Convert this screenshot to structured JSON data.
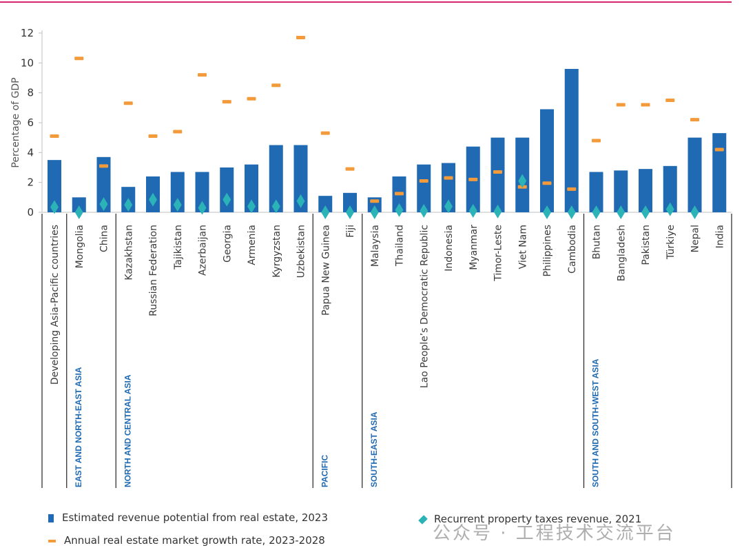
{
  "colors": {
    "bar": "#1f6ab3",
    "growth": "#f39a3a",
    "tax": "#2bb3b8",
    "top_rule": "#d7246b",
    "divider": "#222222"
  },
  "chart_data": {
    "type": "bar",
    "ylabel": "Percentage of GDP",
    "ylim": [
      0,
      12
    ],
    "yticks": [
      "0",
      "2",
      "4",
      "6",
      "8",
      "10",
      "12"
    ],
    "categories": [
      "Developing Asia-Pacific countries",
      "Mongolia",
      "China",
      "Kazakhstan",
      "Russian Federation",
      "Tajikistan",
      "Azerbaijan",
      "Georgia",
      "Armenia",
      "Kyrgyzstan",
      "Uzbekistan",
      "Papua New Guinea",
      "Fiji",
      "Malaysia",
      "Thailand",
      "Lao People’s Democratic Republic",
      "Indonesia",
      "Myanmar",
      "Timor-Leste",
      "Viet Nam",
      "Philippines",
      "Cambodia",
      "Bhutan",
      "Bangladesh",
      "Pakistan",
      "Türkiye",
      "Nepal",
      "India"
    ],
    "series": [
      {
        "name": "Estimated revenue potential from real estate, 2023",
        "type": "bar",
        "values": [
          3.5,
          1.0,
          3.7,
          1.7,
          2.4,
          2.7,
          2.7,
          3.0,
          3.2,
          4.5,
          4.5,
          1.1,
          1.3,
          1.0,
          2.4,
          3.2,
          3.3,
          4.4,
          5.0,
          5.0,
          6.9,
          9.6,
          2.7,
          2.8,
          2.9,
          3.1,
          5.0,
          5.3
        ]
      },
      {
        "name": "Annual real estate market growth rate, 2023-2028",
        "type": "marker",
        "values": [
          5.1,
          10.3,
          3.1,
          7.3,
          5.1,
          5.4,
          9.2,
          7.4,
          7.6,
          8.5,
          11.7,
          5.3,
          2.9,
          0.75,
          1.25,
          2.1,
          2.3,
          2.2,
          2.7,
          1.7,
          1.95,
          1.55,
          4.8,
          7.2,
          7.2,
          7.5,
          6.2,
          4.2
        ]
      },
      {
        "name": "Recurrent property taxes revenue, 2021",
        "type": "marker",
        "values": [
          0.35,
          0.0,
          0.55,
          0.5,
          0.85,
          0.5,
          0.3,
          0.85,
          0.4,
          0.4,
          0.75,
          0.0,
          0.0,
          0.0,
          0.15,
          0.1,
          0.4,
          0.1,
          0.05,
          2.1,
          0.0,
          0.0,
          0.0,
          0.0,
          0.0,
          0.2,
          0.0,
          null
        ]
      }
    ],
    "groups": [
      {
        "label": "",
        "start": 0,
        "end": 0
      },
      {
        "label": "EAST AND NORTH-EAST ASIA",
        "start": 1,
        "end": 2
      },
      {
        "label": "NORTH AND CENTRAL ASIA",
        "start": 3,
        "end": 10
      },
      {
        "label": "PACIFIC",
        "start": 11,
        "end": 12
      },
      {
        "label": "SOUTH-EAST ASIA",
        "start": 13,
        "end": 21
      },
      {
        "label": "SOUTH AND SOUTH-WEST ASIA",
        "start": 22,
        "end": 27
      }
    ]
  },
  "legend": {
    "bar": "Estimated revenue potential from real estate, 2023",
    "growth": "Annual real estate market growth rate, 2023-2028",
    "tax": "Recurrent property taxes revenue, 2021"
  },
  "watermark": "公众号 · 工程技术交流平台"
}
